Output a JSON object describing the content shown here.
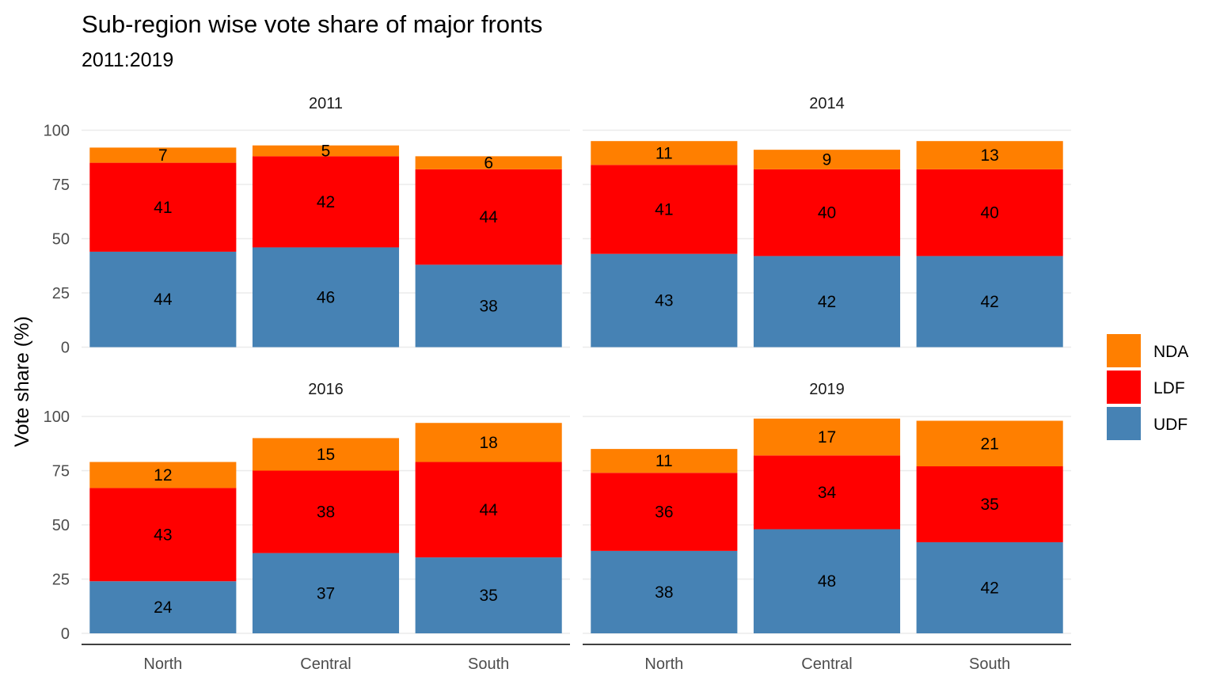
{
  "chart_data": {
    "type": "bar",
    "stacked": true,
    "title": "Sub-region wise vote share of major fronts",
    "subtitle": "2011:2019",
    "xlabel": "",
    "ylabel": "Vote share (%)",
    "ylim": [
      0,
      100
    ],
    "yticks": [
      "0",
      "25",
      "50",
      "75",
      "100"
    ],
    "categories": [
      "North",
      "Central",
      "South"
    ],
    "legend": {
      "position": "right",
      "entries": [
        {
          "name": "NDA",
          "color": "#FF7F00"
        },
        {
          "name": "LDF",
          "color": "#FF0000"
        },
        {
          "name": "UDF",
          "color": "#4682B4"
        }
      ]
    },
    "grid": true,
    "facets": [
      {
        "label": "2011",
        "series": [
          {
            "name": "UDF",
            "values": [
              44,
              46,
              38
            ],
            "labels": [
              "44",
              "46",
              "38"
            ]
          },
          {
            "name": "LDF",
            "values": [
              41,
              42,
              44
            ],
            "labels": [
              "41",
              "42",
              "44"
            ]
          },
          {
            "name": "NDA",
            "values": [
              7,
              5,
              6
            ],
            "labels": [
              "7",
              "5",
              "6"
            ]
          }
        ]
      },
      {
        "label": "2014",
        "series": [
          {
            "name": "UDF",
            "values": [
              43,
              42,
              42
            ],
            "labels": [
              "43",
              "42",
              "42"
            ]
          },
          {
            "name": "LDF",
            "values": [
              41,
              40,
              40
            ],
            "labels": [
              "41",
              "40",
              "40"
            ]
          },
          {
            "name": "NDA",
            "values": [
              11,
              9,
              13
            ],
            "labels": [
              "11",
              "9",
              "13"
            ]
          }
        ]
      },
      {
        "label": "2016",
        "series": [
          {
            "name": "UDF",
            "values": [
              24,
              37,
              35
            ],
            "labels": [
              "24",
              "37",
              "35"
            ]
          },
          {
            "name": "LDF",
            "values": [
              43,
              38,
              44
            ],
            "labels": [
              "43",
              "38",
              "44"
            ]
          },
          {
            "name": "NDA",
            "values": [
              12,
              15,
              18
            ],
            "labels": [
              "12",
              "15",
              "18"
            ]
          }
        ]
      },
      {
        "label": "2019",
        "series": [
          {
            "name": "UDF",
            "values": [
              38,
              48,
              42
            ],
            "labels": [
              "38",
              "48",
              "42"
            ]
          },
          {
            "name": "LDF",
            "values": [
              36,
              34,
              35
            ],
            "labels": [
              "36",
              "34",
              "35"
            ]
          },
          {
            "name": "NDA",
            "values": [
              11,
              17,
              21
            ],
            "labels": [
              "11",
              "17",
              "21"
            ]
          }
        ]
      }
    ]
  }
}
